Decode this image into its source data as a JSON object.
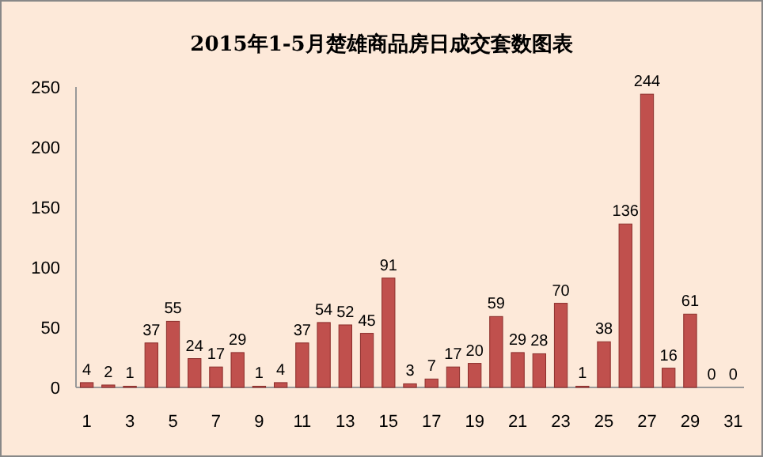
{
  "chart_data": {
    "type": "bar",
    "title": "2015年1-5月楚雄商品房日成交套数图表",
    "categories": [
      "1",
      null,
      "3",
      null,
      "5",
      null,
      "7",
      null,
      "9",
      null,
      "11",
      null,
      "13",
      null,
      "15",
      null,
      "17",
      null,
      "19",
      null,
      "21",
      null,
      "23",
      null,
      "25",
      null,
      "27",
      null,
      "29",
      null,
      "31"
    ],
    "values": [
      4,
      2,
      1,
      37,
      55,
      24,
      17,
      29,
      1,
      4,
      37,
      54,
      52,
      45,
      91,
      3,
      7,
      17,
      20,
      59,
      29,
      28,
      70,
      1,
      38,
      136,
      244,
      16,
      61,
      0,
      0
    ],
    "color": "#c0504d",
    "ylim": [
      0,
      250
    ],
    "yticks": [
      0,
      50,
      100,
      150,
      200,
      250
    ],
    "data_labels": true,
    "grid": false
  }
}
